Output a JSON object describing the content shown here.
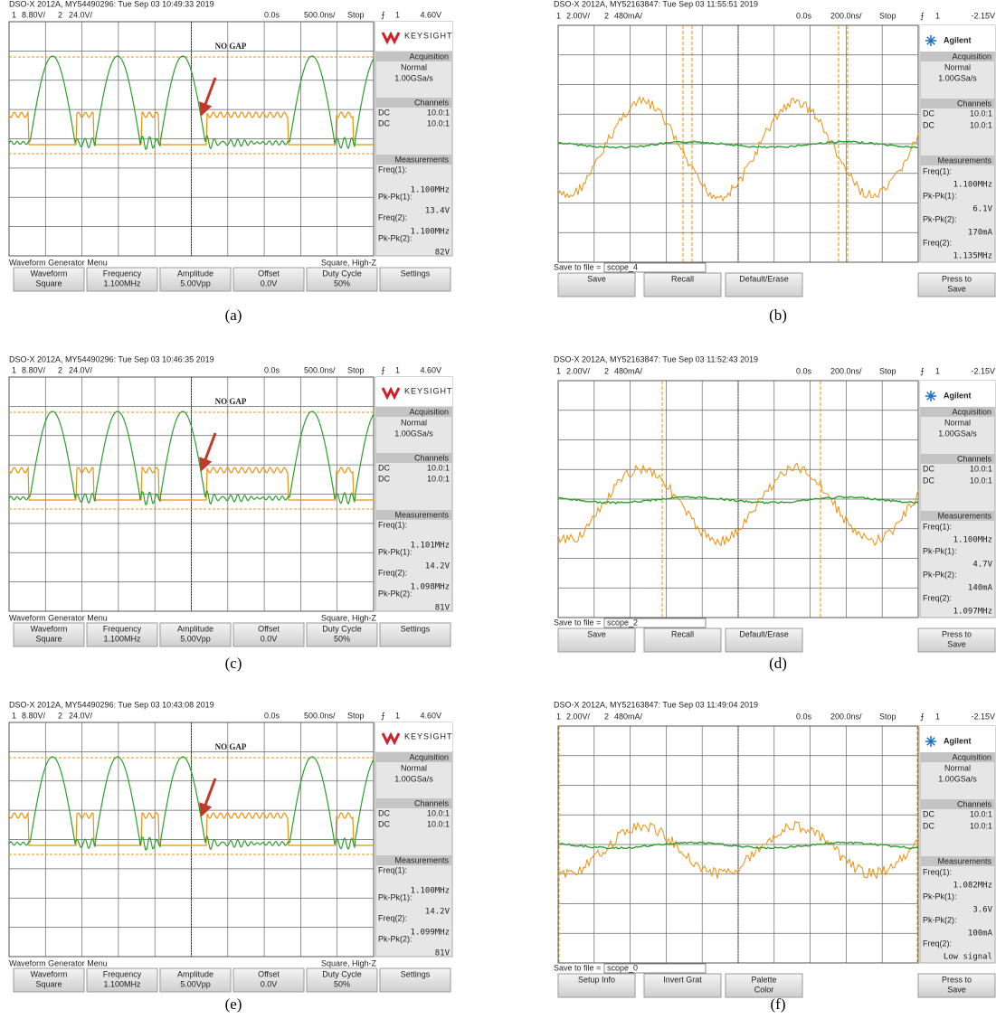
{
  "panels": [
    {
      "caption": "(a)",
      "header": "DSO-X 2012A, MY54490296: Tue Sep 03 10:49:33 2019",
      "top": [
        "1",
        "8.80V/",
        "2",
        "24.0V/",
        "0.0s",
        "500.0ns/",
        "Stop",
        "⨍",
        "1",
        "4.60V"
      ],
      "side": [
        "KEYSIGHT",
        "Acquisition",
        "Normal",
        "1.00GSa/s",
        "Channels",
        "DC",
        "10.0:1",
        "DC",
        "10.0:1",
        "Measurements",
        "Freq(1):",
        "1.100MHz",
        "Pk-Pk(1):",
        "13.4V",
        "Freq(2):",
        "1.100MHz",
        "Pk-Pk(2):",
        "82V"
      ],
      "status_bar": [
        "Waveform Generator Menu",
        "Square, High-Z"
      ],
      "softkeys": [
        [
          "Waveform",
          "Square"
        ],
        [
          "Frequency",
          "1.100MHz"
        ],
        [
          "Amplitude",
          "5.00Vpp"
        ],
        [
          "Offset",
          "0.0V"
        ],
        [
          "Duty Cycle",
          "50%"
        ],
        [
          "Settings"
        ]
      ],
      "annotation": "NO GAP"
    },
    {
      "caption": "(b)",
      "header": "DSO-X 2012A, MY52163847: Tue Sep 03 11:55:51 2019",
      "top": [
        "1",
        "2.00V/",
        "2",
        "480mA/",
        "0.0s",
        "200.0ns/",
        "Stop",
        "⨍",
        "1",
        "-2.15V"
      ],
      "side": [
        "Agilent",
        "Acquisition",
        "Normal",
        "1.00GSa/s",
        "Channels",
        "DC",
        "10.0:1",
        "DC",
        "10.0:1",
        "Measurements",
        "Freq(1):",
        "1.100MHz",
        "Pk-Pk(1):",
        "6.1V",
        "Pk-Pk(2):",
        "170mA",
        "Freq(2):",
        "1.135MHz"
      ],
      "status_bar": [
        "Save to file =",
        "scope_4"
      ],
      "softkeys": [
        [
          "Save"
        ],
        [
          "Recall"
        ],
        [
          "Default/Erase"
        ],
        [
          "Press to",
          "Save"
        ]
      ]
    },
    {
      "caption": "(c)",
      "header": "DSO-X 2012A, MY54490296: Tue Sep 03 10:46:35 2019",
      "top": [
        "1",
        "8.80V/",
        "2",
        "24.0V/",
        "0.0s",
        "500.0ns/",
        "Stop",
        "⨍",
        "1",
        "4.60V"
      ],
      "side": [
        "KEYSIGHT",
        "Acquisition",
        "Normal",
        "1.00GSa/s",
        "Channels",
        "DC",
        "10.0:1",
        "DC",
        "10.0:1",
        "Measurements",
        "Freq(1):",
        "1.101MHz",
        "Pk-Pk(1):",
        "14.2V",
        "Freq(2):",
        "1.098MHz",
        "Pk-Pk(2):",
        "81V"
      ],
      "status_bar": [
        "Waveform Generator Menu",
        "Square, High-Z"
      ],
      "softkeys": [
        [
          "Waveform",
          "Square"
        ],
        [
          "Frequency",
          "1.100MHz"
        ],
        [
          "Amplitude",
          "5.00Vpp"
        ],
        [
          "Offset",
          "0.0V"
        ],
        [
          "Duty Cycle",
          "50%"
        ],
        [
          "Settings"
        ]
      ],
      "annotation": "NO GAP"
    },
    {
      "caption": "(d)",
      "header": "DSO-X 2012A, MY52163847: Tue Sep 03 11:52:43 2019",
      "top": [
        "1",
        "2.00V/",
        "2",
        "480mA/",
        "0.0s",
        "200.0ns/",
        "Stop",
        "⨍",
        "1",
        "-2.15V"
      ],
      "side": [
        "Agilent",
        "Acquisition",
        "Normal",
        "1.00GSa/s",
        "Channels",
        "DC",
        "10.0:1",
        "DC",
        "10.0:1",
        "Measurements",
        "Freq(1):",
        "1.100MHz",
        "Pk-Pk(1):",
        "4.7V",
        "Pk-Pk(2):",
        "140mA",
        "Freq(2):",
        "1.097MHz"
      ],
      "status_bar": [
        "Save to file =",
        "scope_2"
      ],
      "softkeys": [
        [
          "Save"
        ],
        [
          "Recall"
        ],
        [
          "Default/Erase"
        ],
        [
          "Press to",
          "Save"
        ]
      ]
    },
    {
      "caption": "(e)",
      "header": "DSO-X 2012A, MY54490296: Tue Sep 03 10:43:08 2019",
      "top": [
        "1",
        "8.80V/",
        "2",
        "24.0V/",
        "0.0s",
        "500.0ns/",
        "Stop",
        "⨍",
        "1",
        "4.60V"
      ],
      "side": [
        "KEYSIGHT",
        "Acquisition",
        "Normal",
        "1.00GSa/s",
        "Channels",
        "DC",
        "10.0:1",
        "DC",
        "10.0:1",
        "Measurements",
        "Freq(1):",
        "1.100MHz",
        "Pk-Pk(1):",
        "14.2V",
        "Freq(2):",
        "1.099MHz",
        "Pk-Pk(2):",
        "81V"
      ],
      "status_bar": [
        "Waveform Generator Menu",
        "Square, High-Z"
      ],
      "softkeys": [
        [
          "Waveform",
          "Square"
        ],
        [
          "Frequency",
          "1.100MHz"
        ],
        [
          "Amplitude",
          "5.00Vpp"
        ],
        [
          "Offset",
          "0.0V"
        ],
        [
          "Duty Cycle",
          "50%"
        ],
        [
          "Settings"
        ]
      ],
      "annotation": "NO GAP"
    },
    {
      "caption": "(f)",
      "header": "DSO-X 2012A, MY52163847: Tue Sep 03 11:49:04 2019",
      "top": [
        "1",
        "2.00V/",
        "2",
        "480mA/",
        "0.0s",
        "200.0ns/",
        "Stop",
        "⨍",
        "1",
        "-2.15V"
      ],
      "side": [
        "Agilent",
        "Acquisition",
        "Normal",
        "1.00GSa/s",
        "Channels",
        "DC",
        "10.0:1",
        "DC",
        "10.0:1",
        "Measurements",
        "Freq(1):",
        "1.082MHz",
        "Pk-Pk(1):",
        "3.6V",
        "Pk-Pk(2):",
        "100mA",
        "Freq(2):",
        "Low signal"
      ],
      "status_bar": [
        "Save to file =",
        "scope_0"
      ],
      "softkeys": [
        [
          "Setup Info"
        ],
        [
          "Invert Grat"
        ],
        [
          "Palette",
          "Color"
        ],
        [
          "Press to",
          "Save"
        ]
      ]
    }
  ]
}
